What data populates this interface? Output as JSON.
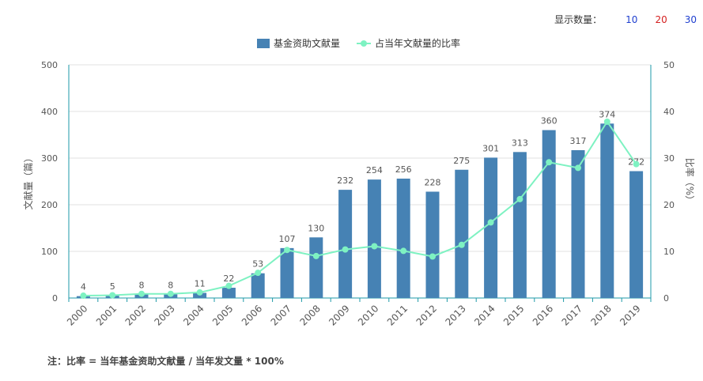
{
  "display_count": {
    "label": "显示数量：",
    "options": [
      {
        "value": "10",
        "color": "#1f3fcf"
      },
      {
        "value": "20",
        "color": "#d42020"
      },
      {
        "value": "30",
        "color": "#1f3fcf"
      }
    ]
  },
  "colors": {
    "bar": "#4682b4",
    "line": "#7ef2c2",
    "axis": "#1e9aa8",
    "grid": "#e2e2e2",
    "text": "#555555"
  },
  "chart_data": {
    "type": "bar",
    "categories": [
      "2000",
      "2001",
      "2002",
      "2003",
      "2004",
      "2005",
      "2006",
      "2007",
      "2008",
      "2009",
      "2010",
      "2011",
      "2012",
      "2013",
      "2014",
      "2015",
      "2016",
      "2017",
      "2018",
      "2019"
    ],
    "series": [
      {
        "name": "基金资助文献量",
        "type": "bar",
        "axis": "left",
        "values": [
          4,
          5,
          8,
          8,
          11,
          22,
          53,
          107,
          130,
          232,
          254,
          256,
          228,
          275,
          301,
          313,
          360,
          317,
          374,
          272
        ]
      },
      {
        "name": "占当年文献量的比率",
        "type": "line",
        "axis": "right",
        "values": [
          0.5,
          0.6,
          0.9,
          0.9,
          1.2,
          2.6,
          5.4,
          10.3,
          9.0,
          10.4,
          11.1,
          10.1,
          8.9,
          11.4,
          16.2,
          21.2,
          29.1,
          27.9,
          37.8,
          28.7
        ]
      }
    ],
    "left_axis": {
      "label": "文献量（篇）",
      "min": 0,
      "max": 500,
      "ticks": [
        "0",
        "100",
        "200",
        "300",
        "400",
        "500"
      ]
    },
    "right_axis": {
      "label": "比率（%）",
      "min": 0,
      "max": 50,
      "ticks": [
        "0",
        "10",
        "20",
        "30",
        "40",
        "50"
      ]
    },
    "legend_position": "top-center",
    "grid": true
  },
  "footnote": "注：比率 = 当年基金资助文献量 / 当年发文量 * 100%"
}
